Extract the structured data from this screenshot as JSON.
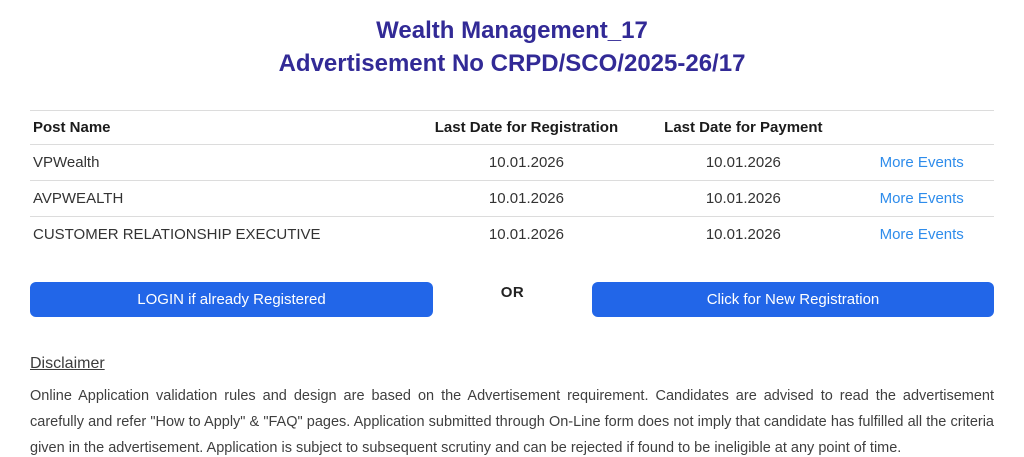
{
  "header": {
    "title_line1": "Wealth Management_17",
    "title_line2": "Advertisement No CRPD/SCO/2025-26/17"
  },
  "table": {
    "columns": [
      "Post Name",
      "Last Date for Registration",
      "Last Date for Payment"
    ],
    "rows": [
      {
        "post_name": "VPWealth",
        "last_date_registration": "10.01.2026",
        "last_date_payment": "10.01.2026",
        "more_events_label": "More Events"
      },
      {
        "post_name": "AVPWEALTH",
        "last_date_registration": "10.01.2026",
        "last_date_payment": "10.01.2026",
        "more_events_label": "More Events"
      },
      {
        "post_name": "CUSTOMER RELATIONSHIP EXECUTIVE",
        "last_date_registration": "10.01.2026",
        "last_date_payment": "10.01.2026",
        "more_events_label": "More Events"
      }
    ]
  },
  "actions": {
    "login_button_label": "LOGIN if already Registered",
    "or_label": "OR",
    "register_button_label": "Click for New Registration"
  },
  "disclaimer": {
    "heading": "Disclaimer",
    "text": "Online Application validation rules and design are based on the Advertisement requirement. Candidates are advised to read the advertisement carefully and refer \"How to Apply\" & \"FAQ\" pages. Application submitted through On-Line form does not imply that candidate has fulfilled all the criteria given in the advertisement. Application is subject to subsequent scrutiny and can be rejected if found to be ineligible at any point of time."
  },
  "colors": {
    "title": "#322a96",
    "button": "#2266e8",
    "button_text": "#ffffff",
    "link": "#2e8ceb",
    "border": "#dcdcdc",
    "heading_text": "#1b1b1b",
    "body_text": "#333333"
  }
}
